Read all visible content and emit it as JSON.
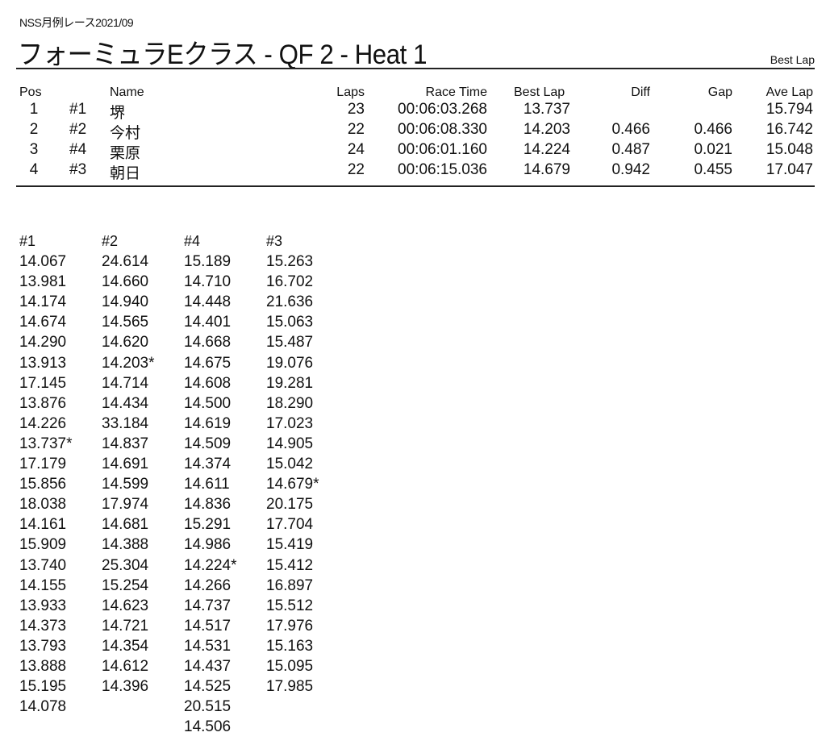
{
  "header": {
    "event": "NSS月例レース2021/09",
    "title": "フォーミュラEクラス  -  QF 2  -  Heat 1",
    "sort_label": "Best Lap"
  },
  "results": {
    "columns": [
      "Pos",
      "",
      "Name",
      "Laps",
      "Race Time",
      "Best Lap",
      "Diff",
      "Gap",
      "Ave Lap"
    ],
    "rows": [
      {
        "pos": "1",
        "num": "#1",
        "name": "堺",
        "laps": "23",
        "race_time": "00:06:03.268",
        "best_lap": "13.737",
        "diff": "",
        "gap": "",
        "ave_lap": "15.794"
      },
      {
        "pos": "2",
        "num": "#2",
        "name": "今村",
        "laps": "22",
        "race_time": "00:06:08.330",
        "best_lap": "14.203",
        "diff": "0.466",
        "gap": "0.466",
        "ave_lap": "16.742"
      },
      {
        "pos": "3",
        "num": "#4",
        "name": "栗原",
        "laps": "24",
        "race_time": "00:06:01.160",
        "best_lap": "14.224",
        "diff": "0.487",
        "gap": "0.021",
        "ave_lap": "15.048"
      },
      {
        "pos": "4",
        "num": "#3",
        "name": "朝日",
        "laps": "22",
        "race_time": "00:06:15.036",
        "best_lap": "14.679",
        "diff": "0.942",
        "gap": "0.455",
        "ave_lap": "17.047"
      }
    ]
  },
  "laps": [
    {
      "car": "#1",
      "times": [
        "14.067",
        "13.981",
        "14.174",
        "14.674",
        "14.290",
        "13.913",
        "17.145",
        "13.876",
        "14.226",
        "13.737*",
        "17.179",
        "15.856",
        "18.038",
        "14.161",
        "15.909",
        "13.740",
        "14.155",
        "13.933",
        "14.373",
        "13.793",
        "13.888",
        "15.195",
        "14.078"
      ]
    },
    {
      "car": "#2",
      "times": [
        "24.614",
        "14.660",
        "14.940",
        "14.565",
        "14.620",
        "14.203*",
        "14.714",
        "14.434",
        "33.184",
        "14.837",
        "14.691",
        "14.599",
        "17.974",
        "14.681",
        "14.388",
        "25.304",
        "15.254",
        "14.623",
        "14.721",
        "14.354",
        "14.612",
        "14.396"
      ]
    },
    {
      "car": "#4",
      "times": [
        "15.189",
        "14.710",
        "14.448",
        "14.401",
        "14.668",
        "14.675",
        "14.608",
        "14.500",
        "14.619",
        "14.509",
        "14.374",
        "14.611",
        "14.836",
        "15.291",
        "14.986",
        "14.224*",
        "14.266",
        "14.737",
        "14.517",
        "14.531",
        "14.437",
        "14.525",
        "20.515",
        "14.506"
      ]
    },
    {
      "car": "#3",
      "times": [
        "15.263",
        "16.702",
        "21.636",
        "15.063",
        "15.487",
        "19.076",
        "19.281",
        "18.290",
        "17.023",
        "14.905",
        "15.042",
        "14.679*",
        "20.175",
        "17.704",
        "15.419",
        "15.412",
        "16.897",
        "15.512",
        "17.976",
        "15.163",
        "15.095",
        "17.985"
      ]
    }
  ]
}
